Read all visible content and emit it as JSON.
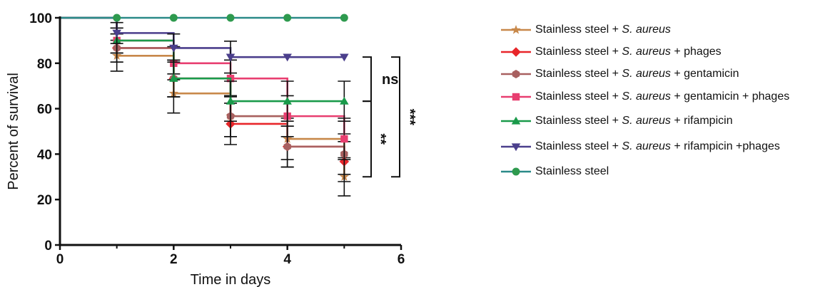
{
  "chart_data": {
    "type": "line",
    "subtype": "kaplan-meier-step",
    "xlabel": "Time in days",
    "ylabel": "Percent of survival",
    "xlim": [
      0,
      6
    ],
    "ylim": [
      0,
      100
    ],
    "xticks": [
      0,
      2,
      4,
      6
    ],
    "yticks": [
      0,
      20,
      40,
      60,
      80,
      100
    ],
    "grid": false,
    "legend_position": "right",
    "series": [
      {
        "name_parts": [
          "Stainless steel + ",
          "S. aureus",
          ""
        ],
        "color": "#c8884a",
        "marker": "star",
        "x": [
          0,
          1,
          2,
          3,
          4,
          5
        ],
        "y": [
          100,
          83.3,
          66.7,
          56.7,
          46.7,
          30
        ],
        "err": [
          0,
          6.8,
          8.6,
          9.0,
          9.1,
          8.4
        ]
      },
      {
        "name_parts": [
          "Stainless steel + ",
          "S. aureus",
          " + phages"
        ],
        "color": "#e8262a",
        "marker": "diamond",
        "x": [
          0,
          1,
          2,
          3,
          4,
          5
        ],
        "y": [
          100,
          86.7,
          73.3,
          53.3,
          43.3,
          36.7
        ],
        "err": [
          0,
          6.2,
          8.1,
          9.1,
          9.0,
          8.8
        ]
      },
      {
        "name_parts": [
          "Stainless steel + ",
          "S. aureus",
          " + gentamicin"
        ],
        "color": "#a86060",
        "marker": "hexagon",
        "x": [
          0,
          1,
          2,
          3,
          4,
          5
        ],
        "y": [
          100,
          86.7,
          73.3,
          56.7,
          43.3,
          40
        ],
        "err": [
          0,
          6.2,
          8.1,
          9.0,
          9.0,
          8.9
        ]
      },
      {
        "name_parts": [
          "Stainless steel + ",
          "S. aureus",
          " + gentamicin + phages"
        ],
        "color": "#e83e70",
        "marker": "square",
        "x": [
          0,
          1,
          2,
          3,
          4,
          5
        ],
        "y": [
          100,
          90,
          80,
          73.3,
          56.7,
          46.7
        ],
        "err": [
          0,
          5.5,
          7.3,
          8.1,
          9.0,
          9.1
        ]
      },
      {
        "name_parts": [
          "Stainless steel + ",
          "S. aureus",
          " + rifampicin"
        ],
        "color": "#1a9a4a",
        "marker": "triangle-up",
        "x": [
          0,
          1,
          2,
          3,
          4,
          5
        ],
        "y": [
          100,
          90,
          73.3,
          63.3,
          63.3,
          63.3
        ],
        "err": [
          0,
          5.5,
          8.1,
          8.8,
          8.8,
          8.8
        ]
      },
      {
        "name_parts": [
          "Stainless steel + ",
          "S. aureus",
          " + rifampicin +phages"
        ],
        "color": "#4b3f8c",
        "marker": "triangle-down",
        "x": [
          0,
          1,
          2,
          3,
          4,
          5
        ],
        "y": [
          100,
          93.3,
          86.7,
          82.7,
          82.7,
          82.7
        ],
        "err": [
          0,
          4.6,
          6.2,
          7.0,
          0,
          0
        ]
      },
      {
        "name_parts": [
          "Stainless steel",
          "",
          ""
        ],
        "color": "#2a8a88",
        "marker": "circle",
        "marker_color": "#2e9a4e",
        "x": [
          0,
          1,
          2,
          3,
          4,
          5
        ],
        "y": [
          100,
          100,
          100,
          100,
          100,
          100
        ],
        "err": [
          0,
          0,
          0,
          0,
          0,
          0
        ]
      }
    ],
    "annotations": [
      {
        "text": "ns",
        "bracket_from": 82.7,
        "bracket_to": 63.3
      },
      {
        "text": "**",
        "bracket_from": 63.3,
        "bracket_to": 30
      },
      {
        "text": "***",
        "bracket_from": 82.7,
        "bracket_to": 30
      }
    ]
  }
}
